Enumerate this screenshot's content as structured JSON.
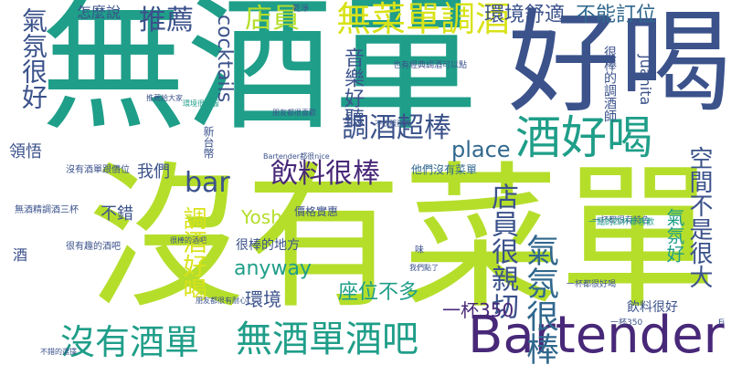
{
  "colors": {
    "background": "#ffffff",
    "teal": "#1f9e89",
    "lime": "#b5de2b",
    "navy": "#3b528b",
    "purple": "#482878",
    "green": "#35b779",
    "lightgreen": "#6ece58",
    "blue": "#31688e",
    "yellow": "#d8e219"
  },
  "cloud": {
    "words": [
      "無酒單",
      "好喝",
      "沒有菜單",
      "Bartender",
      "酒好喝",
      "無菜單調酒",
      "無酒單酒吧",
      "沒有酒單",
      "氣氛很棒",
      "推薦",
      "店員",
      "環境舒適",
      "不能訂位",
      "氣氛很好",
      "bar",
      "飲料很棒",
      "調酒超棒",
      "店員很親切",
      "空間不是很大",
      "調酒好喝",
      "cocktails",
      "音樂好聽",
      "place",
      "anyway",
      "座位不多",
      "一杯350",
      "環境",
      "Yosh",
      "氣氛好",
      "很棒的調酒師",
      "Juanita",
      "我們",
      "領悟",
      "不錯",
      "怎麼說",
      "很棒的地方",
      "價格實惠",
      "他們沒有菜單",
      "飲料很好",
      "沒有酒單跟價位",
      "很有趣的酒吧",
      "無酒精調酒三杯",
      "新台幣",
      "酒",
      "一杯都很有特色",
      "Bartender都很nice",
      "朋友都很喜歡",
      "一杯350",
      "一杯都很好喝",
      "朋友都很有耐心",
      "環境很舒服",
      "一點的四杯都喜歡",
      "我們點了",
      "不收服務費",
      "也有經典調酒可以點",
      "Fi",
      "味",
      "乾淨",
      "推薦給大家",
      "很棒的酒吧",
      "不錯的選擇"
    ]
  }
}
